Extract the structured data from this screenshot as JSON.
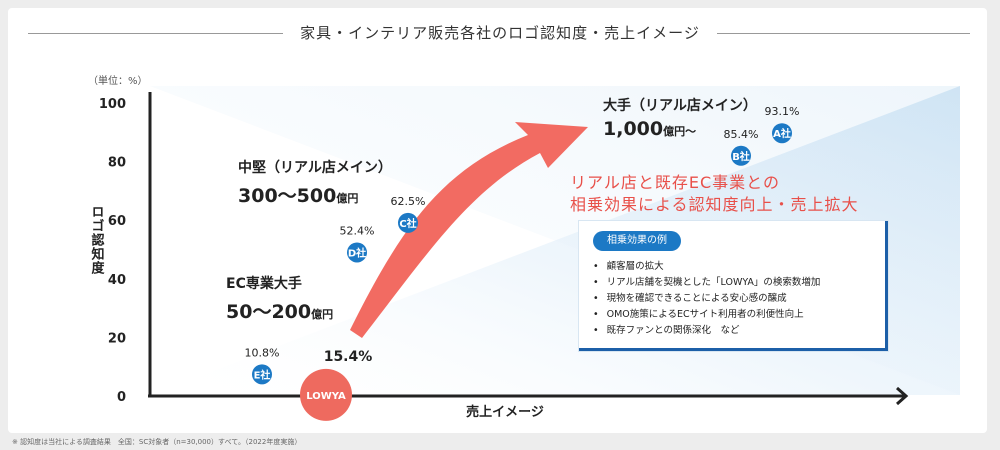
{
  "title": "家具・インテリア販売各社のロゴ認知度・売上イメージ",
  "unit_label": "（単位：%）",
  "footnote": "※ 認知度は当社による調査結果　全国：SC対象者（n=30,000）すべて。（2022年度実施）",
  "chart_data": {
    "type": "scatter",
    "title": "家具・インテリア販売各社のロゴ認知度・売上イメージ",
    "ylabel": "ロゴ認知度",
    "xlabel": "売上イメージ",
    "ylim": [
      0,
      100
    ],
    "yticks": [
      "0",
      "20",
      "40",
      "60",
      "80",
      "100"
    ],
    "points": [
      {
        "label": "A社",
        "value": 93.1,
        "value_label": "93.1%",
        "color": "#1c79c5"
      },
      {
        "label": "B社",
        "value": 85.4,
        "value_label": "85.4%",
        "color": "#1c79c5"
      },
      {
        "label": "C社",
        "value": 62.5,
        "value_label": "62.5%",
        "color": "#1c79c5"
      },
      {
        "label": "D社",
        "value": 52.4,
        "value_label": "52.4%",
        "color": "#1c79c5"
      },
      {
        "label": "E社",
        "value": 10.8,
        "value_label": "10.8%",
        "color": "#1c79c5"
      },
      {
        "label": "LOWYA",
        "value": 15.4,
        "value_label": "15.4%",
        "color": "#ee6a5f"
      }
    ]
  },
  "segments": {
    "large": {
      "name": "大手（リアル店メイン）",
      "range": "1,000",
      "unit": "億円〜"
    },
    "mid": {
      "name": "中堅（リアル店メイン）",
      "range": "300〜500",
      "unit": "億円"
    },
    "ec": {
      "name": "EC専業大手",
      "range": "50〜200",
      "unit": "億円"
    }
  },
  "synergy_text": [
    "リアル店と既存EC事業との",
    "相乗効果による認知度向上・売上拡大"
  ],
  "examples": {
    "header": "相乗効果の例",
    "items": [
      "顧客層の拡大",
      "リアル店舗を契機とした「LOWYA」の検索数増加",
      "現物を確認できることによる安心感の醸成",
      "OMO施策によるECサイト利用者の利便性向上",
      "既存ファンとの関係深化　など"
    ]
  },
  "colors": {
    "company": "#1c79c5",
    "lowya": "#ee6a5f",
    "arrow": "#f26b62",
    "accent_text": "#e8504a"
  }
}
